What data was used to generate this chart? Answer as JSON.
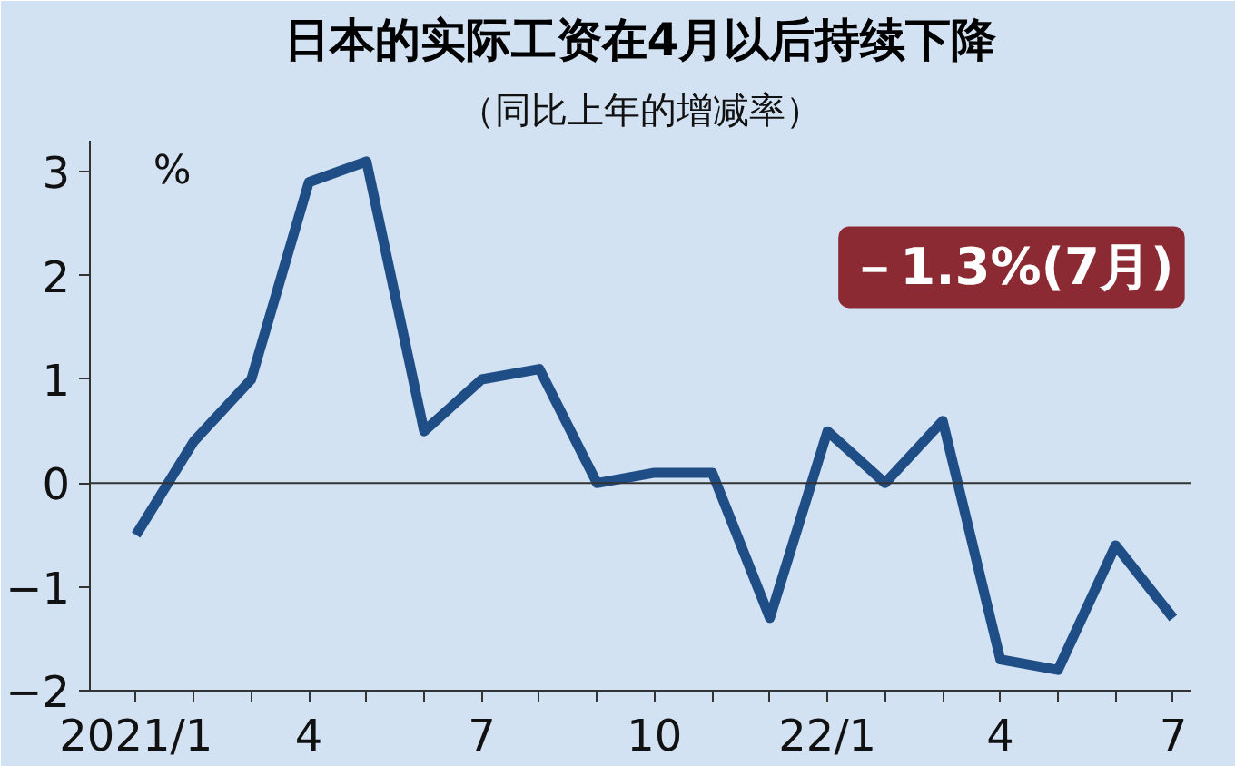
{
  "chart_data": {
    "type": "line",
    "title": "日本的实际工资在4月以后持续下降",
    "subtitle": "（同比上年的增减率）",
    "ylabel": "%",
    "categories": [
      "2021/1",
      null,
      null,
      "4",
      null,
      null,
      "7",
      null,
      null,
      "10",
      null,
      null,
      "22/1",
      null,
      null,
      "4",
      null,
      null,
      "7"
    ],
    "series": [
      {
        "color": "#1f4e86",
        "values": [
          -0.5,
          0.4,
          1.0,
          2.9,
          3.1,
          0.5,
          1.0,
          1.1,
          0.0,
          0.1,
          0.1,
          -1.3,
          0.5,
          0.0,
          0.6,
          -1.7,
          -1.8,
          -0.6,
          -1.3
        ]
      }
    ],
    "ylim": [
      -2,
      3.3
    ],
    "yticks": [
      -2,
      -1,
      0,
      1,
      2,
      3
    ],
    "grid": false,
    "marker": "none",
    "line_style": "solid",
    "ref_lines": [
      {
        "axis": "y",
        "value": 0,
        "color": "#333333"
      }
    ],
    "annotations": [
      "－1.3%(7月)"
    ]
  }
}
